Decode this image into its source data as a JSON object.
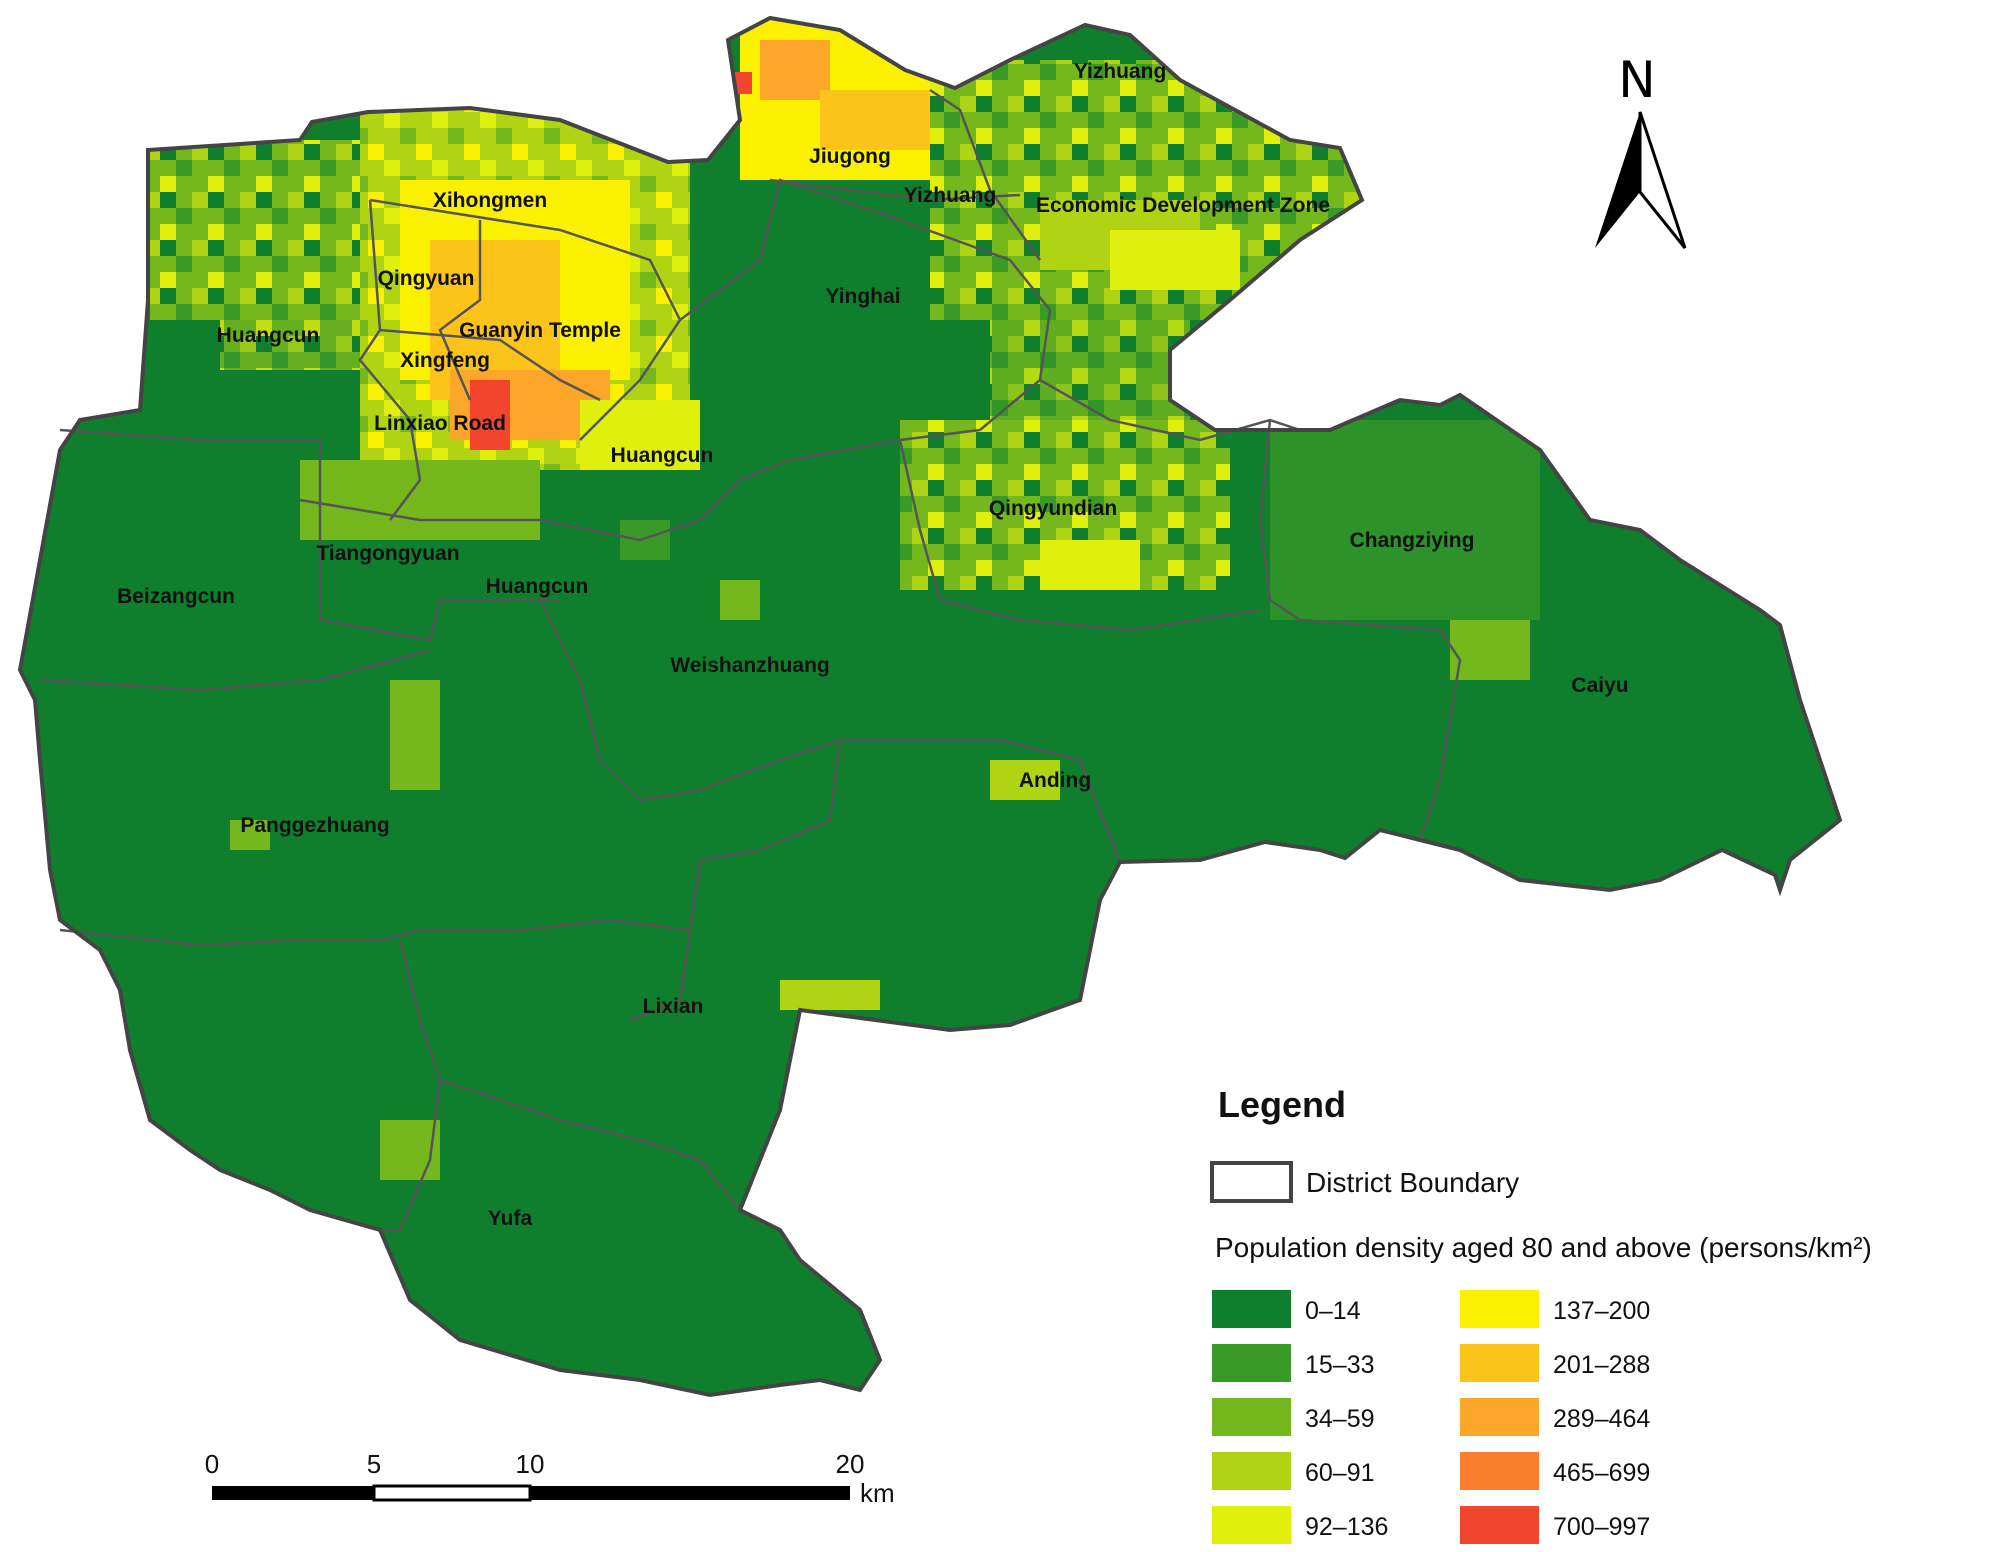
{
  "north_arrow": {
    "label": "N"
  },
  "town_labels": [
    "Yizhuang",
    "Jiugong",
    "Yizhuang",
    "Economic Development Zone",
    "Xihongmen",
    "Qingyuan",
    "Guanyin Temple",
    "Huangcun",
    "Xingfeng",
    "Linxiao Road",
    "Huangcun",
    "Yinghai",
    "Qingyundian",
    "Changziying",
    "Tiangongyuan",
    "Huangcun",
    "Beizangcun",
    "Weishanzhuang",
    "Caiyu",
    "Anding",
    "Panggezhuang",
    "Lixian",
    "Yufa"
  ],
  "legend": {
    "title": "Legend",
    "boundary_label": "District Boundary",
    "density_title": "Population density aged 80 and above (persons/km²)",
    "classes": [
      {
        "label": "0–14",
        "color": "#0f7f2d"
      },
      {
        "label": "15–33",
        "color": "#3a9a28"
      },
      {
        "label": "34–59",
        "color": "#74b81e"
      },
      {
        "label": "60–91",
        "color": "#b0d414"
      },
      {
        "label": "92–136",
        "color": "#e1ef0c"
      },
      {
        "label": "137–200",
        "color": "#fbf000"
      },
      {
        "label": "201–288",
        "color": "#fcc41b"
      },
      {
        "label": "289–464",
        "color": "#fca72a"
      },
      {
        "label": "465–699",
        "color": "#fb7e2e"
      },
      {
        "label": "700–997",
        "color": "#f2452e"
      }
    ]
  },
  "scale_bar": {
    "ticks": [
      "0",
      "5",
      "10",
      "20"
    ],
    "unit": "km"
  }
}
